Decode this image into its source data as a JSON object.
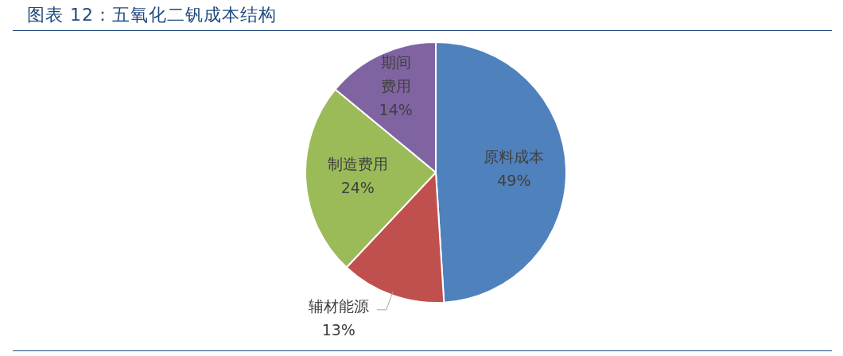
{
  "chart_data": {
    "type": "pie",
    "title": "图表 12：五氧化二钒成本结构",
    "categories": [
      "原料成本",
      "辅材能源",
      "制造费用",
      "期间费用"
    ],
    "values": [
      49,
      13,
      24,
      14
    ],
    "value_labels": [
      "49%",
      "13%",
      "24%",
      "14%"
    ],
    "colors": [
      "#4f81bd",
      "#c0504d",
      "#9bbb59",
      "#8064a2"
    ],
    "legend": false
  }
}
